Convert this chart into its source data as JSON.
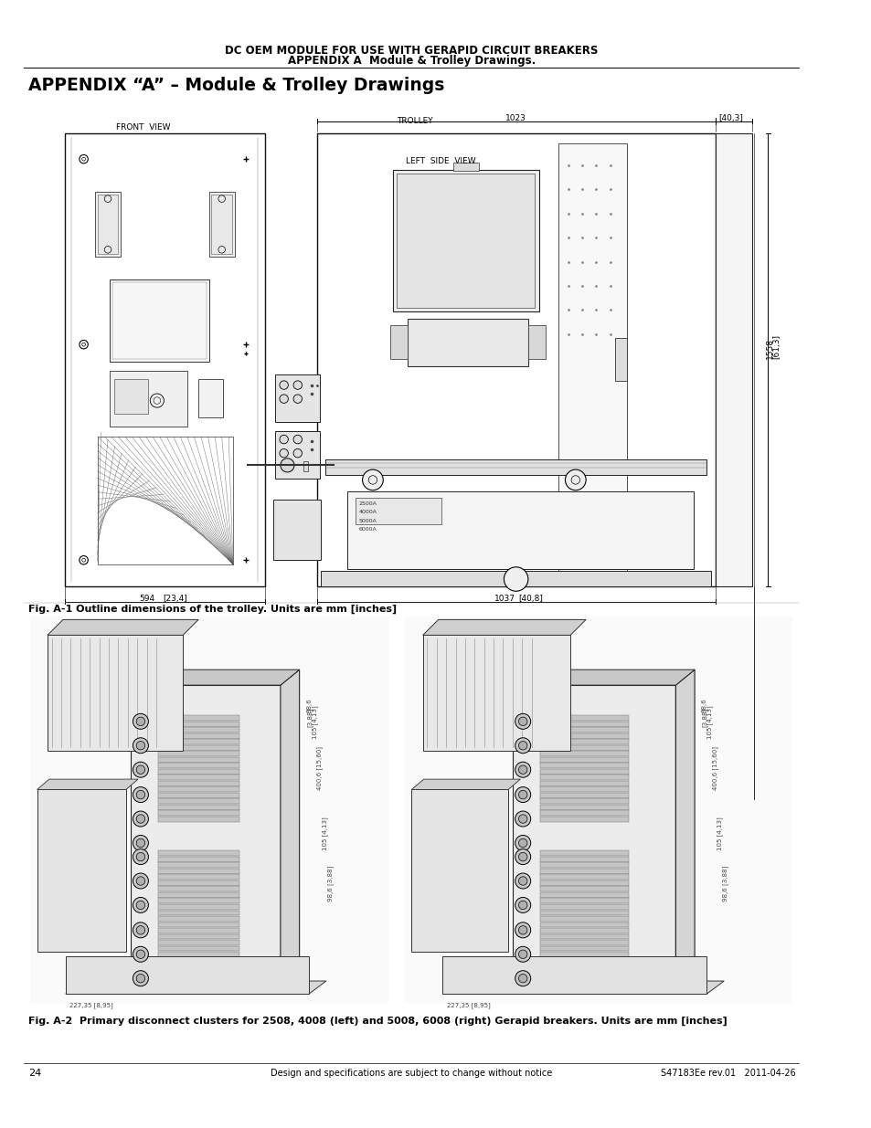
{
  "page_title_line1": "DC OEM MODULE FOR USE WITH GERAPID CIRCUIT BREAKERS",
  "page_title_line2": "APPENDIX A  Module & Trolley Drawings.",
  "appendix_heading": "APPENDIX “A” – Module & Trolley Drawings",
  "trolley_label": "TROLLEY",
  "front_view_label": "FRONT  VIEW",
  "left_side_view_label": "LEFT  SIDE  VIEW",
  "dim_1023": "1023",
  "dim_40_3": "40,3",
  "dim_1558": "1558",
  "dim_61_3": "61,3",
  "dim_594": "594",
  "dim_23_4": "23,4",
  "dim_1037": "1037",
  "dim_40_8": "40,8",
  "fig1_caption": "Fig. A-1 Outline dimensions of the trolley. Units are mm [inches]",
  "fig2_caption": "Fig. A-2  Primary disconnect clusters for 2508, 4008 (left) and 5008, 6008 (right) Gerapid breakers. Units are mm [inches]",
  "page_num": "24",
  "footer_center": "Design and specifications are subject to change without notice",
  "footer_right": "S47183Ee rev.01   2011-04-26",
  "bg_color": "#ffffff"
}
